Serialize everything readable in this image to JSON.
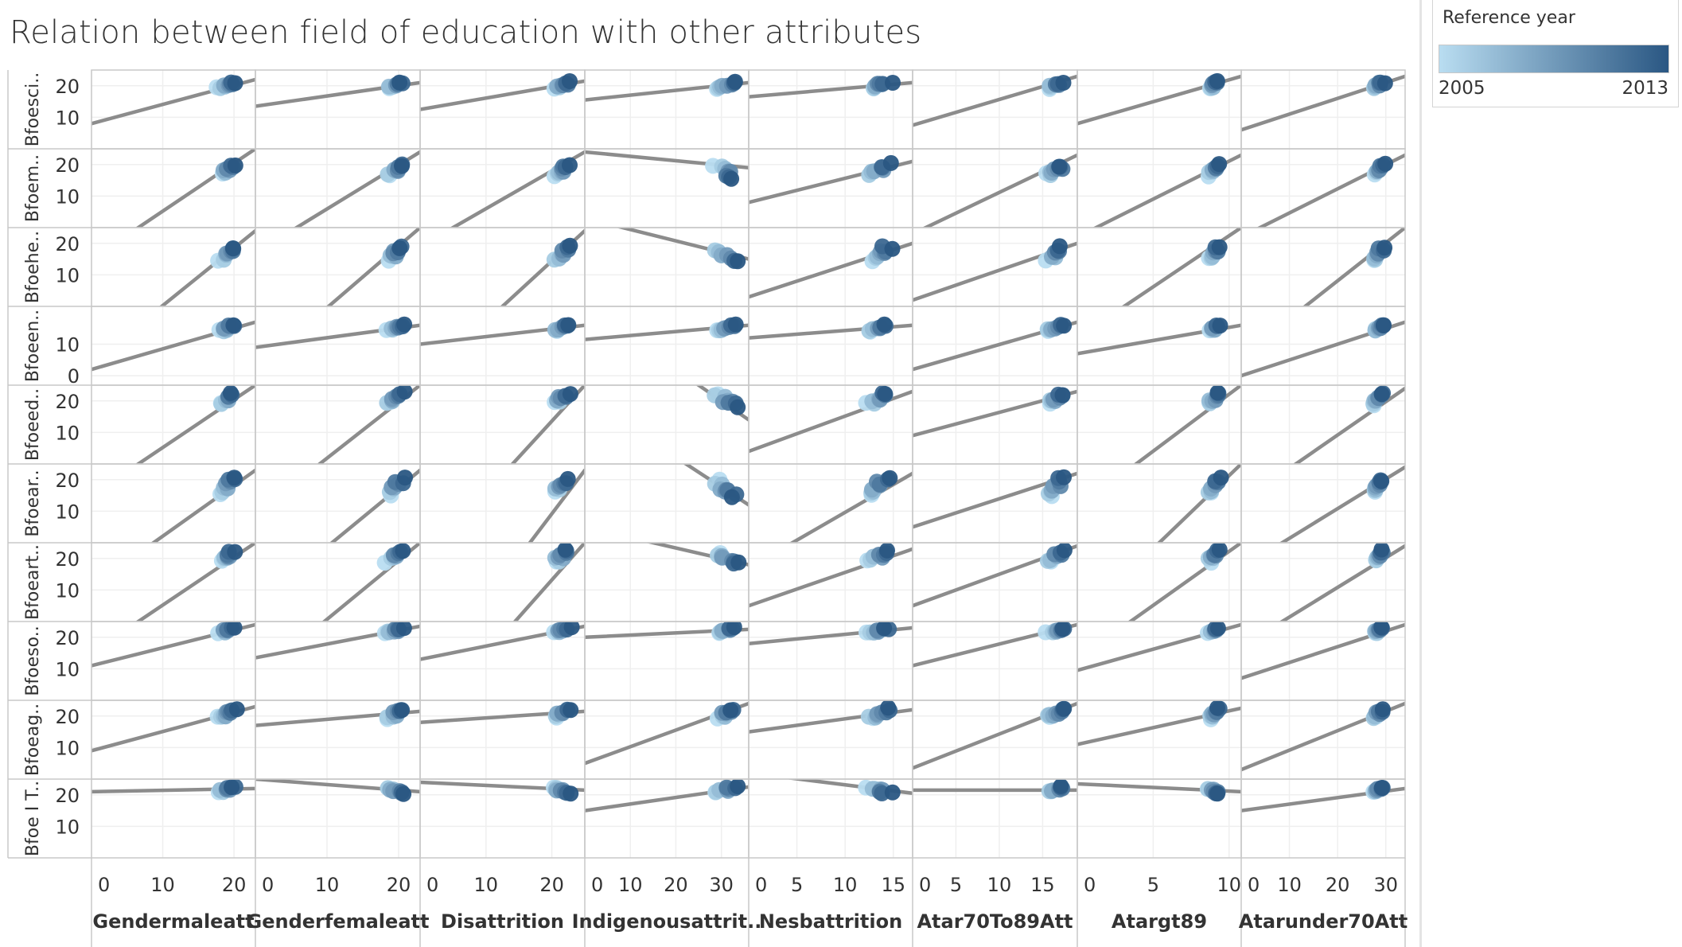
{
  "title": "Relation between field of education with other attributes",
  "legend": {
    "title": "Reference year",
    "min_label": "2005",
    "max_label": "2013",
    "color_min": "#b9ddf1",
    "color_max": "#2a5783"
  },
  "colors": {
    "trend_line": "#8c8c8c",
    "gridline": "#efefef",
    "border": "#c8c8c8",
    "text": "#333333"
  },
  "chart_data": {
    "type": "scatter",
    "trend_lines": true,
    "color_field": "Reference year",
    "color_range": [
      2005,
      2013
    ],
    "grid": true,
    "legend_position": "top-right",
    "columns": [
      {
        "label": "Gendermaleatt",
        "xlim": [
          0,
          23
        ],
        "ticks": [
          "0",
          "10",
          "20"
        ],
        "tick_values": [
          0,
          10,
          20
        ]
      },
      {
        "label": "Genderfemaleatt",
        "xlim": [
          0,
          23
        ],
        "ticks": [
          "0",
          "10",
          "20"
        ],
        "tick_values": [
          0,
          10,
          20
        ]
      },
      {
        "label": "Disattrition",
        "xlim": [
          0,
          25
        ],
        "ticks": [
          "0",
          "10",
          "20"
        ],
        "tick_values": [
          0,
          10,
          20
        ]
      },
      {
        "label": "Indigenousattrit..",
        "xlim": [
          0,
          36
        ],
        "ticks": [
          "0",
          "10",
          "20",
          "30"
        ],
        "tick_values": [
          0,
          10,
          20,
          30
        ]
      },
      {
        "label": "Nesbattrition",
        "xlim": [
          0,
          17
        ],
        "ticks": [
          "0",
          "5",
          "10",
          "15"
        ],
        "tick_values": [
          0,
          5,
          10,
          15
        ]
      },
      {
        "label": "Atar70To89Att",
        "xlim": [
          0,
          19
        ],
        "ticks": [
          "0",
          "5",
          "10",
          "15"
        ],
        "tick_values": [
          0,
          5,
          10,
          15
        ]
      },
      {
        "label": "Atargt89",
        "xlim": [
          0,
          10.8
        ],
        "ticks": [
          "0",
          "5",
          "10"
        ],
        "tick_values": [
          0,
          5,
          10
        ]
      },
      {
        "label": "Atarunder70Att",
        "xlim": [
          0,
          34
        ],
        "ticks": [
          "0",
          "10",
          "20",
          "30"
        ],
        "tick_values": [
          0,
          10,
          20,
          30
        ]
      }
    ],
    "rows": [
      {
        "label": "Bfoesci..",
        "ylim": [
          0,
          25
        ],
        "ticks": [
          "20",
          "10"
        ],
        "tick_values": [
          20,
          10
        ],
        "yc": 20,
        "spread": 1.2
      },
      {
        "label": "Bfoem..",
        "ylim": [
          0,
          25
        ],
        "ticks": [
          "20",
          "10"
        ],
        "tick_values": [
          20,
          10
        ],
        "yc": 18,
        "spread": 2.0
      },
      {
        "label": "Bfoehe..",
        "ylim": [
          0,
          25
        ],
        "ticks": [
          "20",
          "10"
        ],
        "tick_values": [
          20,
          10
        ],
        "yc": 16.5,
        "spread": 2.5
      },
      {
        "label": "Bfoeen..",
        "ylim": [
          -3,
          22
        ],
        "ticks": [
          "10",
          "0"
        ],
        "tick_values": [
          10,
          0
        ],
        "yc": 15,
        "spread": 1.2
      },
      {
        "label": "Bfoeed..",
        "ylim": [
          0,
          25
        ],
        "ticks": [
          "20",
          "10"
        ],
        "tick_values": [
          20,
          10
        ],
        "yc": 20.5,
        "spread": 2.0
      },
      {
        "label": "Bfoear..",
        "ylim": [
          0,
          25
        ],
        "ticks": [
          "20",
          "10"
        ],
        "tick_values": [
          20,
          10
        ],
        "yc": 17.5,
        "spread": 3.0
      },
      {
        "label": "Bfoeart..",
        "ylim": [
          0,
          25
        ],
        "ticks": [
          "20",
          "10"
        ],
        "tick_values": [
          20,
          10
        ],
        "yc": 20.5,
        "spread": 2.0
      },
      {
        "label": "Bfoeso..",
        "ylim": [
          0,
          25
        ],
        "ticks": [
          "20",
          "10"
        ],
        "tick_values": [
          20,
          10
        ],
        "yc": 22,
        "spread": 1.0
      },
      {
        "label": "Bfoeag..",
        "ylim": [
          0,
          25
        ],
        "ticks": [
          "20",
          "10"
        ],
        "tick_values": [
          20,
          10
        ],
        "yc": 20.5,
        "spread": 1.8
      },
      {
        "label": "Bfoe I T..",
        "ylim": [
          0,
          25
        ],
        "ticks": [
          "20",
          "10"
        ],
        "tick_values": [
          20,
          10
        ],
        "yc": 21.5,
        "spread": 1.0
      }
    ],
    "x_clusters": [
      {
        "center": 19,
        "spread": 1.2
      },
      {
        "center": 19.5,
        "spread": 1.2
      },
      {
        "center": 21.5,
        "spread": 1.3
      },
      {
        "center": 31,
        "spread": 2.5
      },
      {
        "center": 13.5,
        "spread": 1.2
      },
      {
        "center": 16.5,
        "spread": 1.0
      },
      {
        "center": 9,
        "spread": 0.4
      },
      {
        "center": 28.5,
        "spread": 1.2
      }
    ],
    "trend_lines_data": [
      [
        [
          0,
          8,
          23,
          22
        ],
        [
          0,
          13.5,
          23,
          21
        ],
        [
          0,
          12.5,
          25,
          21.5
        ],
        [
          0,
          15.5,
          36,
          21
        ],
        [
          0,
          16.5,
          17,
          21
        ],
        [
          0,
          7.5,
          19,
          23
        ],
        [
          0,
          8,
          10.8,
          23
        ],
        [
          0,
          6,
          34,
          23
        ]
      ],
      [
        [
          0,
          -10,
          23,
          25
        ],
        [
          0,
          -8,
          23,
          24
        ],
        [
          0,
          -6,
          25,
          24
        ],
        [
          0,
          24,
          36,
          19
        ],
        [
          0,
          8,
          17,
          21
        ],
        [
          0,
          -2,
          19,
          23
        ],
        [
          0,
          -3,
          10.8,
          23
        ],
        [
          0,
          -3,
          34,
          23
        ]
      ],
      [
        [
          0,
          -18,
          23,
          24
        ],
        [
          0,
          -20,
          23,
          25
        ],
        [
          0,
          -24,
          25,
          24
        ],
        [
          0,
          28,
          36,
          15
        ],
        [
          0,
          3,
          17,
          20
        ],
        [
          0,
          2,
          19,
          20
        ],
        [
          0,
          -10,
          10.8,
          25
        ],
        [
          0,
          -16,
          34,
          25
        ]
      ],
      [
        [
          0,
          2,
          23,
          17
        ],
        [
          0,
          9,
          23,
          16
        ],
        [
          0,
          10,
          25,
          16
        ],
        [
          0,
          11.5,
          36,
          16
        ],
        [
          0,
          12,
          17,
          16
        ],
        [
          0,
          2,
          19,
          17
        ],
        [
          0,
          7,
          10.8,
          16
        ],
        [
          0,
          0,
          34,
          17
        ]
      ],
      [
        [
          0,
          -10,
          23,
          25
        ],
        [
          0,
          -16,
          23,
          25
        ],
        [
          0,
          -32,
          25,
          25
        ],
        [
          0,
          50,
          36,
          14
        ],
        [
          0,
          4,
          17,
          23
        ],
        [
          0,
          9,
          19,
          23
        ],
        [
          0,
          -14,
          10.8,
          25
        ],
        [
          0,
          -12,
          34,
          24
        ]
      ],
      [
        [
          0,
          -14,
          23,
          23
        ],
        [
          0,
          -20,
          23,
          23
        ],
        [
          0,
          -46,
          25,
          23
        ],
        [
          0,
          46,
          36,
          12
        ],
        [
          0,
          -8,
          17,
          22
        ],
        [
          0,
          5,
          19,
          22
        ],
        [
          0,
          -25,
          10.8,
          25
        ],
        [
          0,
          -8,
          34,
          24
        ]
      ],
      [
        [
          0,
          -10,
          23,
          25
        ],
        [
          0,
          -18,
          23,
          25
        ],
        [
          0,
          -34,
          25,
          25
        ],
        [
          0,
          30,
          36,
          18
        ],
        [
          0,
          5,
          17,
          23
        ],
        [
          0,
          5,
          19,
          24
        ],
        [
          0,
          -12,
          10.8,
          25
        ],
        [
          0,
          -8,
          34,
          24
        ]
      ],
      [
        [
          0,
          11,
          23,
          24
        ],
        [
          0,
          13.5,
          23,
          23.5
        ],
        [
          0,
          13,
          25,
          23.5
        ],
        [
          0,
          20,
          36,
          22.5
        ],
        [
          0,
          18,
          17,
          23
        ],
        [
          0,
          11,
          19,
          24
        ],
        [
          0,
          9.5,
          10.8,
          24
        ],
        [
          0,
          7,
          34,
          24
        ]
      ],
      [
        [
          0,
          9,
          23,
          23
        ],
        [
          0,
          17,
          23,
          21.5
        ],
        [
          0,
          18,
          25,
          21.5
        ],
        [
          0,
          5,
          36,
          24
        ],
        [
          0,
          15,
          17,
          22
        ],
        [
          0,
          3.5,
          19,
          24
        ],
        [
          0,
          11,
          10.8,
          22.5
        ],
        [
          0,
          3,
          34,
          24
        ]
      ],
      [
        [
          0,
          21,
          23,
          22
        ],
        [
          0,
          25,
          23,
          21
        ],
        [
          0,
          24,
          25,
          21.5
        ],
        [
          0,
          15,
          36,
          22.5
        ],
        [
          0,
          27,
          17,
          20.5
        ],
        [
          0,
          21.5,
          19,
          21.5
        ],
        [
          0,
          23.5,
          10.8,
          21
        ],
        [
          0,
          15,
          34,
          22
        ]
      ]
    ]
  }
}
